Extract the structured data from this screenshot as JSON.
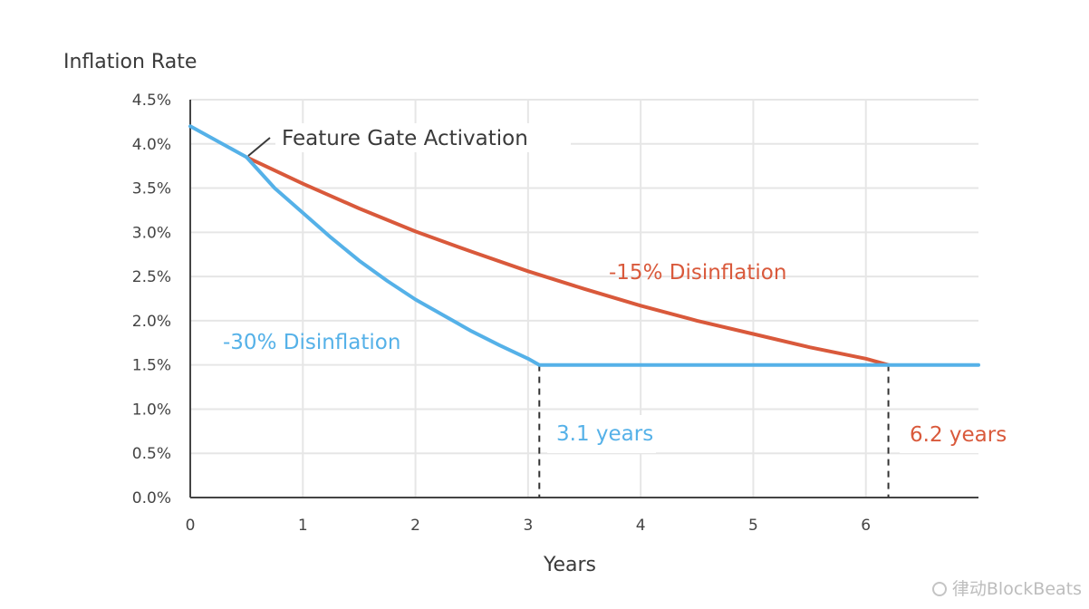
{
  "chart_data": {
    "type": "line",
    "ylabel": "Inflation Rate",
    "xlabel": "Years",
    "xlim": [
      0,
      7
    ],
    "ylim": [
      0,
      4.5
    ],
    "x_ticks": [
      "0",
      "1",
      "2",
      "3",
      "4",
      "5",
      "6"
    ],
    "y_ticks": [
      "0.0%",
      "0.5%",
      "1.0%",
      "1.5%",
      "2.0%",
      "2.5%",
      "3.0%",
      "3.5%",
      "4.0%",
      "4.5%"
    ],
    "grid": true,
    "series": [
      {
        "name": "-15% Disinflation",
        "color": "#d9593b",
        "x": [
          0.5,
          1.0,
          1.5,
          2.0,
          2.5,
          3.0,
          3.5,
          4.0,
          4.5,
          5.0,
          5.5,
          6.0,
          6.2
        ],
        "y": [
          3.85,
          3.55,
          3.27,
          3.01,
          2.78,
          2.56,
          2.36,
          2.17,
          2.0,
          1.85,
          1.7,
          1.57,
          1.5
        ]
      },
      {
        "name": "-30% Disinflation",
        "color": "#55b1e8",
        "x": [
          0,
          0.5,
          0.75,
          1.0,
          1.25,
          1.5,
          1.75,
          2.0,
          2.25,
          2.5,
          2.75,
          3.0,
          3.1,
          7.0
        ],
        "y": [
          4.2,
          3.85,
          3.5,
          3.22,
          2.94,
          2.68,
          2.45,
          2.24,
          2.06,
          1.88,
          1.72,
          1.57,
          1.5,
          1.5
        ]
      }
    ],
    "annotations": [
      {
        "text": "Feature Gate Activation",
        "x": 0.5,
        "y": 3.85
      },
      {
        "text": "3.1 years",
        "x": 3.1
      },
      {
        "text": "6.2 years",
        "x": 6.2
      }
    ]
  },
  "watermark": "律动BlockBeats"
}
